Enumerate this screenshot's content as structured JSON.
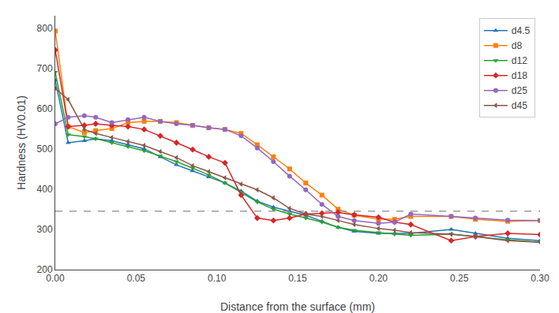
{
  "chart_data": {
    "type": "line",
    "xlabel": "Distance from the surface (mm)",
    "ylabel": "Hardness (HV0.01)",
    "xlim": [
      0,
      0.3
    ],
    "ylim": [
      200,
      830
    ],
    "xticks": [
      {
        "value": 0.0,
        "label": "0.00"
      },
      0.05,
      {
        "value": 0.1,
        "label": "0.10"
      },
      0.15,
      {
        "value": 0.2,
        "label": "0.20"
      },
      0.25,
      {
        "value": 0.3,
        "label": "0.30"
      }
    ],
    "yticks": [
      200,
      300,
      400,
      500,
      600,
      700,
      800
    ],
    "grid": false,
    "legend": "upper right",
    "reference_line": {
      "y": 345,
      "line_style": "dashed"
    },
    "x": [
      0.0,
      0.008,
      0.018,
      0.025,
      0.035,
      0.045,
      0.055,
      0.065,
      0.075,
      0.085,
      0.095,
      0.105,
      0.115,
      0.125,
      0.135,
      0.145,
      0.155,
      0.165,
      0.175,
      0.185,
      0.2,
      0.21,
      0.22,
      0.245,
      0.26,
      0.28,
      0.3
    ],
    "series": [
      {
        "name": "d4.5",
        "marker": "triangle-up",
        "values": [
          670,
          515,
          520,
          525,
          520,
          510,
          500,
          480,
          460,
          445,
          430,
          415,
          395,
          370,
          355,
          345,
          335,
          320,
          305,
          295,
          290,
          290,
          290,
          300,
          290,
          278,
          272
        ]
      },
      {
        "name": "d8",
        "marker": "square",
        "values": [
          792,
          555,
          540,
          545,
          550,
          565,
          568,
          568,
          565,
          558,
          552,
          548,
          538,
          510,
          480,
          450,
          415,
          385,
          350,
          335,
          325,
          325,
          332,
          332,
          325,
          320,
          322
        ]
      },
      {
        "name": "d12",
        "marker": "triangle-down",
        "values": [
          690,
          535,
          530,
          525,
          515,
          505,
          495,
          482,
          468,
          452,
          435,
          415,
          392,
          368,
          350,
          338,
          328,
          318,
          305,
          298,
          292,
          288,
          285,
          288,
          282,
          274,
          268
        ]
      },
      {
        "name": "d18",
        "marker": "diamond",
        "values": [
          745,
          555,
          558,
          562,
          558,
          555,
          548,
          532,
          515,
          498,
          480,
          465,
          385,
          328,
          322,
          328,
          338,
          340,
          342,
          336,
          330,
          318,
          312,
          272,
          282,
          290,
          287
        ]
      },
      {
        "name": "d25",
        "marker": "circle",
        "values": [
          562,
          578,
          582,
          578,
          565,
          572,
          578,
          568,
          562,
          558,
          552,
          548,
          532,
          502,
          468,
          432,
          398,
          362,
          332,
          322,
          315,
          318,
          338,
          332,
          328,
          323,
          322
        ]
      },
      {
        "name": "d45",
        "marker": "triangle-left",
        "values": [
          650,
          622,
          548,
          538,
          528,
          518,
          508,
          493,
          478,
          458,
          443,
          428,
          412,
          398,
          378,
          352,
          338,
          332,
          322,
          312,
          302,
          298,
          292,
          288,
          282,
          272,
          268
        ]
      }
    ]
  }
}
